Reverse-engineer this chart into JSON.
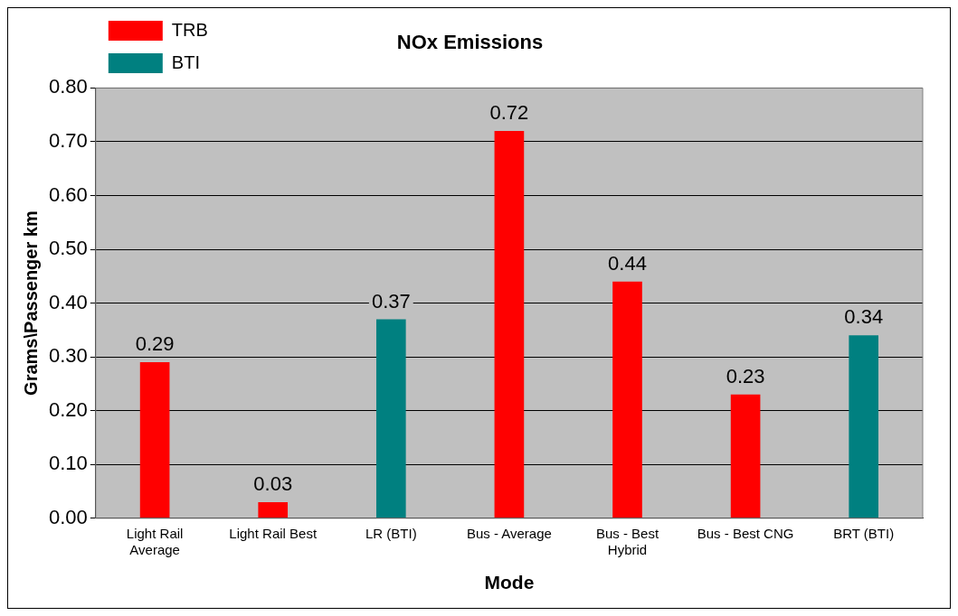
{
  "chart_data": {
    "type": "bar",
    "title": "NOx Emissions",
    "xlabel": "Mode",
    "ylabel": "Grams\\Passenger km",
    "categories": [
      "Light Rail Average",
      "Light Rail Best",
      "LR (BTI)",
      "Bus - Average",
      "Bus - Best Hybrid",
      "Bus - Best CNG",
      "BRT (BTI)"
    ],
    "series": [
      {
        "name": "TRB",
        "color": "#ff0000",
        "values": [
          0.29,
          0.03,
          null,
          0.72,
          0.44,
          0.23,
          null
        ]
      },
      {
        "name": "BTI",
        "color": "#008080",
        "values": [
          null,
          null,
          0.37,
          null,
          null,
          null,
          0.34
        ]
      }
    ],
    "ylim": [
      0,
      0.8
    ],
    "yticks": [
      {
        "value": 0,
        "label": "0.00"
      },
      {
        "value": 0.1,
        "label": "0.10"
      },
      {
        "value": 0.2,
        "label": "0.20"
      },
      {
        "value": 0.3,
        "label": "0.30"
      },
      {
        "value": 0.4,
        "label": "0.40"
      },
      {
        "value": 0.5,
        "label": "0.50"
      },
      {
        "value": 0.6,
        "label": "0.60"
      },
      {
        "value": 0.7,
        "label": "0.70"
      },
      {
        "value": 0.8,
        "label": "0.80"
      }
    ],
    "grid": "y",
    "legend": "top left",
    "data_labels": true
  }
}
